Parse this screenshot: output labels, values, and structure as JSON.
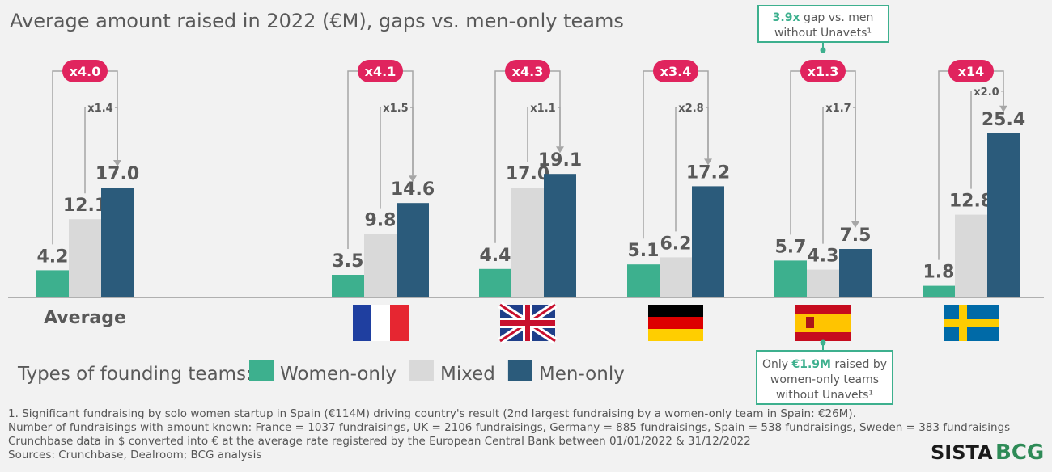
{
  "chart_data": {
    "type": "bar",
    "title": "Average amount raised in 2022 (€M), gaps vs. men-only teams",
    "categories": [
      "Average",
      null,
      null,
      null,
      null,
      null
    ],
    "series": [
      {
        "name": "Women-only",
        "color": "#3db08e",
        "values": [
          4.2,
          3.5,
          4.4,
          5.1,
          5.7,
          1.8
        ]
      },
      {
        "name": "Mixed",
        "color": "#d9d9d9",
        "values": [
          12.1,
          9.8,
          17.0,
          6.2,
          4.3,
          12.8
        ],
        "value_labels": [
          "12.1",
          "9.8",
          "17.0",
          "6.2",
          "4.3",
          "12.8"
        ]
      },
      {
        "name": "Men-only",
        "color": "#2b5b7b",
        "values": [
          17.0,
          14.6,
          19.1,
          17.2,
          7.5,
          25.4
        ],
        "value_labels": [
          "17.0",
          "14.6",
          "19.1",
          "17.2",
          "7.5",
          "25.4"
        ]
      }
    ],
    "gap_labels": {
      "women_only_vs_men_only": [
        "x4.0",
        "x4.1",
        "x4.3",
        "x3.4",
        "x1.3",
        "x14"
      ],
      "mixed_vs_men_only": [
        "x1.4",
        "x1.5",
        "x1.1",
        "x2.8",
        "x1.7",
        "x2.0"
      ]
    },
    "legend_title": "Types of founding teams:",
    "callouts": {
      "top": {
        "highlight": "3.9x",
        "line1": "gap vs. men",
        "line2": "without Unavets¹"
      },
      "bottom": {
        "before": "Only",
        "highlight": "€1.9M",
        "after": "raised by",
        "line2": "women-only teams",
        "line3": "without Unavets¹"
      }
    },
    "footnotes": [
      "1. Significant fundraising by solo women startup in Spain (€114M) driving country's result (2nd largest fundraising by a women-only team in Spain: €26M).",
      "Number of fundraisings with amount known: France = 1037 fundraisings, UK = 2106 fundraisings, Germany = 885 fundraisings, Spain = 538 fundraisings, Sweden = 383 fundraisings",
      "Crunchbase data in $ converted into € at the average rate registered by the European Central Bank between 01/01/2022 & 31/12/2022",
      "Sources: Crunchbase, Dealroom; BCG analysis"
    ],
    "logos": [
      "SISTA",
      "BCG"
    ]
  }
}
